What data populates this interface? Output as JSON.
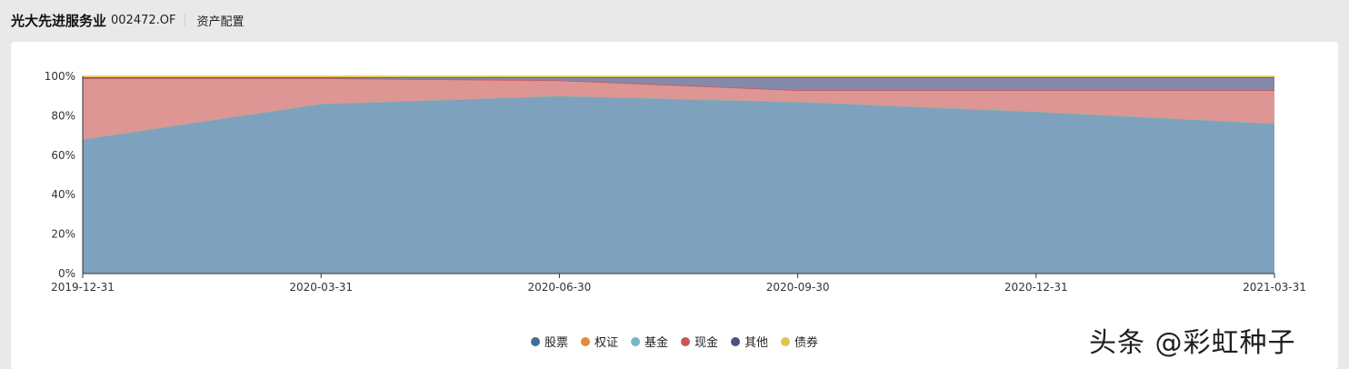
{
  "header": {
    "fund_name": "光大先进服务业",
    "fund_code": "002472.OF",
    "section_title": "资产配置"
  },
  "watermark": "头条 @彩虹种子",
  "chart_data": {
    "type": "area",
    "stacked": true,
    "categories": [
      "2019-12-31",
      "2020-03-31",
      "2020-06-30",
      "2020-09-30",
      "2020-12-31",
      "2021-03-31"
    ],
    "yticks": [
      "0%",
      "20%",
      "40%",
      "60%",
      "80%",
      "100%"
    ],
    "ylim": [
      0,
      100
    ],
    "legend_position": "bottom-center",
    "series": [
      {
        "name": "股票",
        "color": "#3f6f99",
        "fill": "#7ea1bd",
        "values": [
          68,
          86,
          90,
          87,
          82,
          76
        ]
      },
      {
        "name": "权证",
        "color": "#e58a3a",
        "fill": "#e58a3a",
        "values": [
          0,
          0,
          0,
          0,
          0,
          0
        ]
      },
      {
        "name": "基金",
        "color": "#78b7c0",
        "fill": "#78b7c0",
        "values": [
          0,
          0,
          0,
          0,
          0,
          0
        ]
      },
      {
        "name": "现金",
        "color": "#c9565a",
        "fill": "#dd9694",
        "values": [
          31,
          13,
          8,
          6,
          11,
          17
        ]
      },
      {
        "name": "其他",
        "color": "#4a5280",
        "fill": "#848aa8",
        "values": [
          0.5,
          0.5,
          1.5,
          6.5,
          6.5,
          6.5
        ]
      },
      {
        "name": "债券",
        "color": "#e3c352",
        "fill": "#e3c352",
        "values": [
          0.5,
          0.5,
          0.5,
          0.5,
          0.5,
          0.5
        ]
      }
    ]
  }
}
